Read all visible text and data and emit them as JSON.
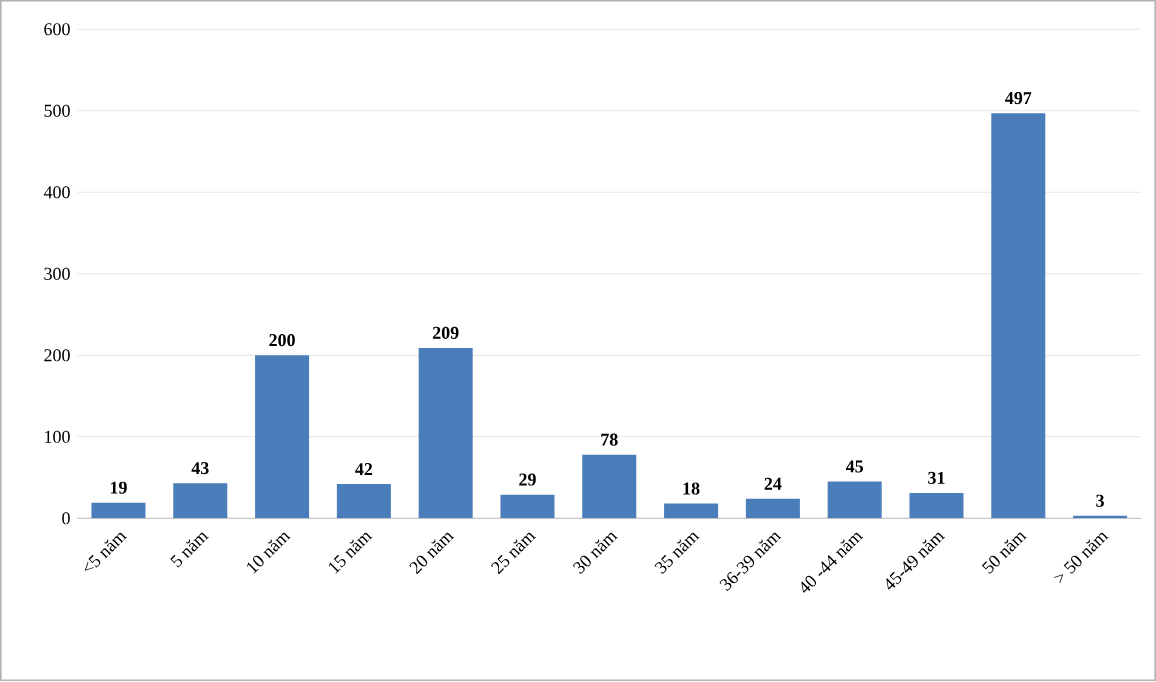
{
  "chart_data": {
    "type": "bar",
    "categories": [
      "<5 năm",
      "5 năm",
      "10 năm",
      "15 năm",
      "20 năm",
      "25 năm",
      "30 năm",
      "35 năm",
      "36-39 năm",
      "40 -44 năm",
      "45-49 năm",
      "50 năm",
      "> 50 năm"
    ],
    "values": [
      19,
      43,
      200,
      42,
      209,
      29,
      78,
      18,
      24,
      45,
      31,
      497,
      3
    ],
    "color": "#4a7ebb",
    "ylim": [
      0,
      600
    ],
    "yticks": [
      0,
      100,
      200,
      300,
      400,
      500,
      600
    ],
    "grid": "y",
    "data_labels": true
  }
}
